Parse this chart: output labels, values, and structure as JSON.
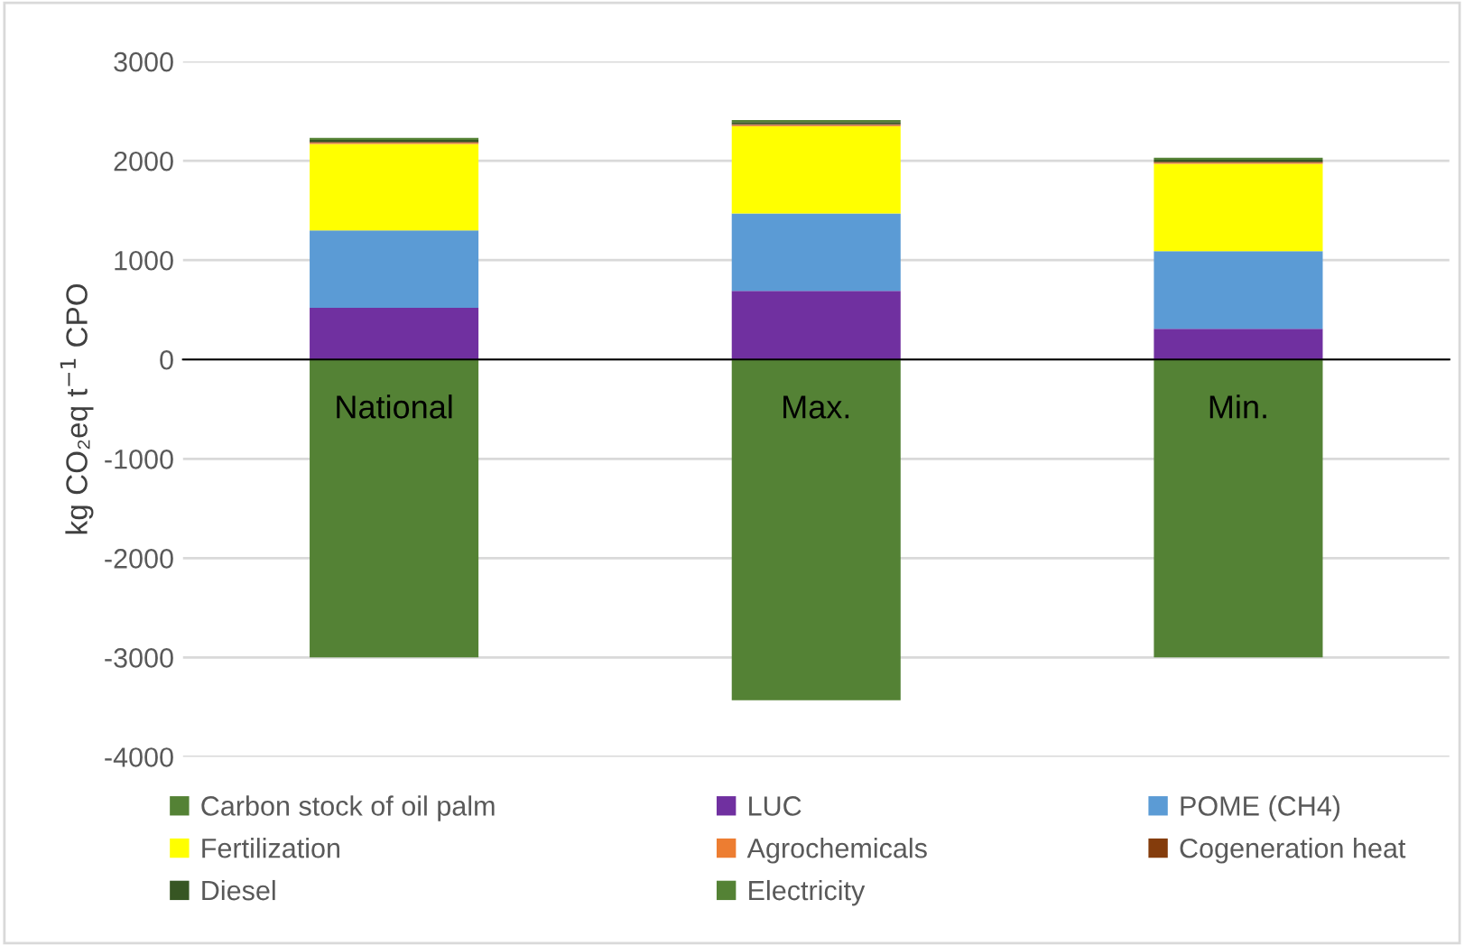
{
  "chart_data": {
    "type": "bar",
    "stacked": true,
    "ylabel": "kg CO₂eq t$^{−1}$ CPO",
    "categories": [
      "National",
      "Max.",
      "Min."
    ],
    "series": [
      {
        "name": "Carbon stock of oil palm",
        "color": "#548235",
        "values": [
          -3000,
          -3430,
          -3000
        ]
      },
      {
        "name": "LUC",
        "color": "#7030a0",
        "values": [
          520,
          690,
          310
        ]
      },
      {
        "name": "POME (CH4)",
        "color": "#5b9bd5",
        "values": [
          780,
          780,
          780
        ]
      },
      {
        "name": "Fertilization",
        "color": "#ffff00",
        "values": [
          870,
          880,
          880
        ]
      },
      {
        "name": "Agrochemicals",
        "color": "#ed7d31",
        "values": [
          10,
          10,
          10
        ]
      },
      {
        "name": "Cogeneration heat",
        "color": "#843c0c",
        "values": [
          10,
          10,
          10
        ]
      },
      {
        "name": "Diesel",
        "color": "#375623",
        "values": [
          20,
          20,
          20
        ]
      },
      {
        "name": "Electricity",
        "color": "#548235",
        "values": [
          20,
          20,
          20
        ]
      }
    ],
    "ylim": [
      -4000,
      3000
    ],
    "yticks": [
      -4000,
      -3000,
      -2000,
      -1000,
      0,
      1000,
      2000,
      3000
    ],
    "grid": "y",
    "legend": "bottom"
  }
}
